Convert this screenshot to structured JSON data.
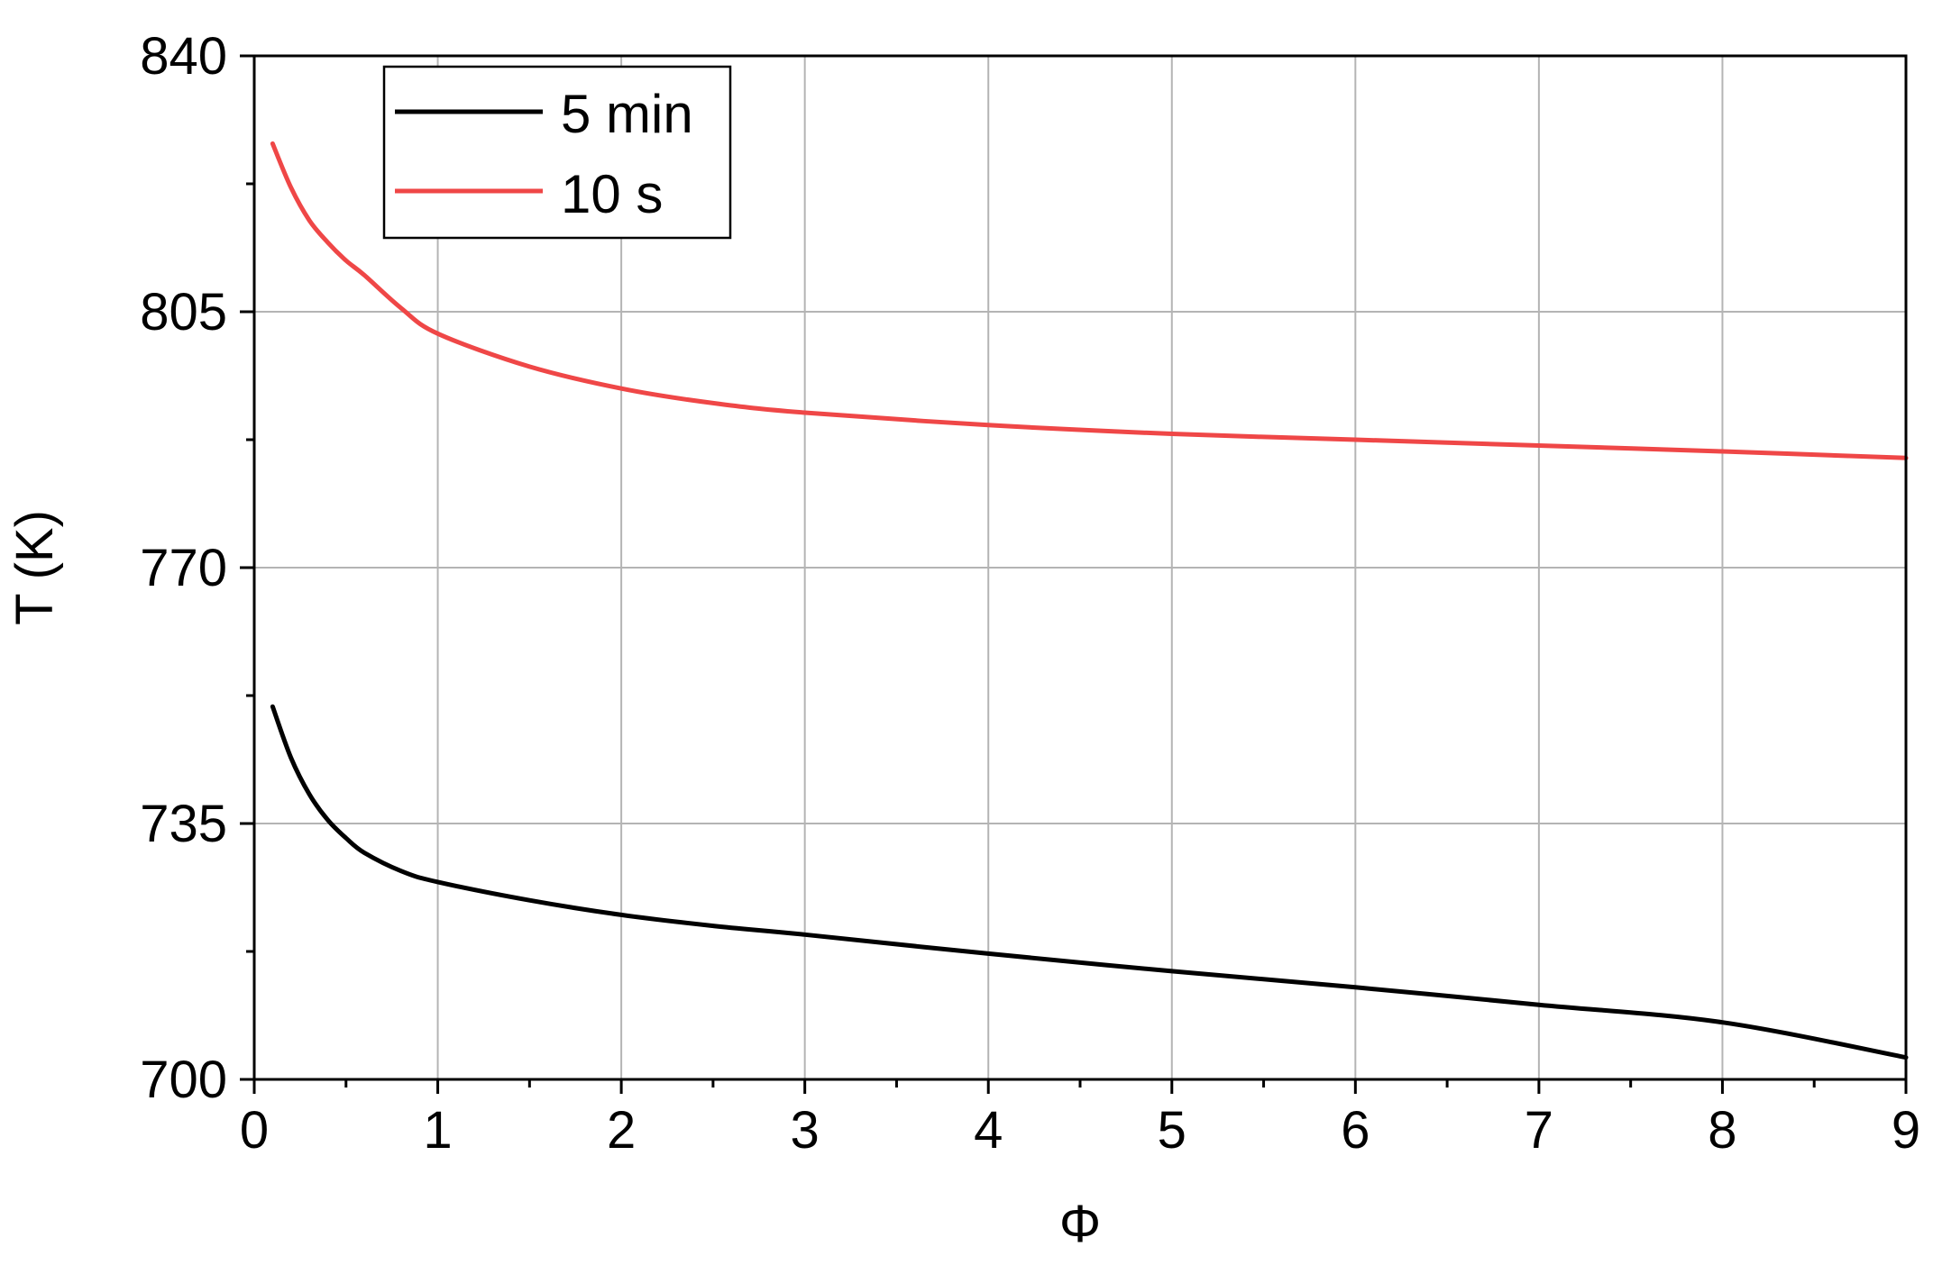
{
  "chart_data": {
    "type": "line",
    "title": "",
    "xlabel": "Φ",
    "ylabel": "T (K)",
    "xlim": [
      0,
      9
    ],
    "ylim": [
      700,
      840
    ],
    "x_ticks": [
      0,
      1,
      2,
      3,
      4,
      5,
      6,
      7,
      8,
      9
    ],
    "y_ticks": [
      700,
      735,
      770,
      805,
      840
    ],
    "grid": true,
    "legend_position": "top-left",
    "series": [
      {
        "name": "5 min",
        "color": "#000000",
        "x": [
          0.1,
          0.2,
          0.3,
          0.4,
          0.5,
          0.6,
          0.8,
          1.0,
          1.5,
          2.0,
          2.5,
          3.0,
          4.0,
          5.0,
          6.0,
          7.0,
          8.0,
          9.0
        ],
        "y": [
          751,
          744,
          739,
          735.5,
          733,
          731,
          728.5,
          727,
          724.5,
          722.5,
          721,
          719.8,
          717.2,
          714.8,
          712.6,
          710.2,
          707.8,
          703
        ]
      },
      {
        "name": "10 s",
        "color": "#ef4747",
        "x": [
          0.1,
          0.2,
          0.3,
          0.4,
          0.5,
          0.6,
          0.8,
          1.0,
          1.5,
          2.0,
          2.5,
          3.0,
          4.0,
          5.0,
          6.0,
          7.0,
          8.0,
          9.0
        ],
        "y": [
          828,
          822,
          817.5,
          814.5,
          812,
          810,
          805.5,
          802,
          797.5,
          794.5,
          792.5,
          791.2,
          789.5,
          788.3,
          787.5,
          786.7,
          785.9,
          785
        ]
      }
    ]
  }
}
